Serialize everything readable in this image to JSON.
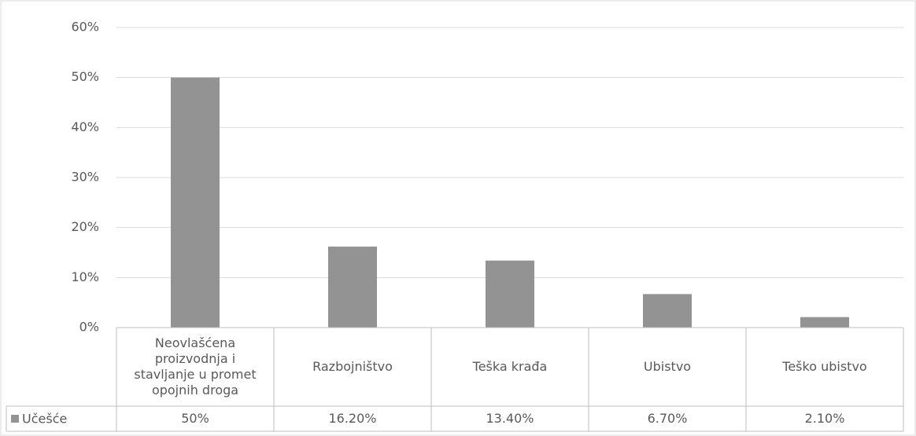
{
  "chart_data": {
    "type": "bar",
    "categories": [
      "Neovlašćena proizvodnja i stavljanje u promet opojnih droga",
      "Razbojništvo",
      "Teška krađa",
      "Ubistvo",
      "Teško ubistvo"
    ],
    "series": [
      {
        "name": "Učešće",
        "color": "#939393",
        "values": [
          50,
          16.2,
          13.4,
          6.7,
          2.1
        ],
        "value_labels": [
          "50%",
          "16.20%",
          "13.40%",
          "6.70%",
          "2.10%"
        ]
      }
    ],
    "ylim": [
      0,
      60
    ],
    "yticks": [
      {
        "value": 0,
        "label": "0%"
      },
      {
        "value": 10,
        "label": "10%"
      },
      {
        "value": 20,
        "label": "20%"
      },
      {
        "value": 30,
        "label": "30%"
      },
      {
        "value": 40,
        "label": "40%"
      },
      {
        "value": 50,
        "label": "50%"
      },
      {
        "value": 60,
        "label": "60%"
      }
    ],
    "grid": true,
    "data_table": true
  }
}
